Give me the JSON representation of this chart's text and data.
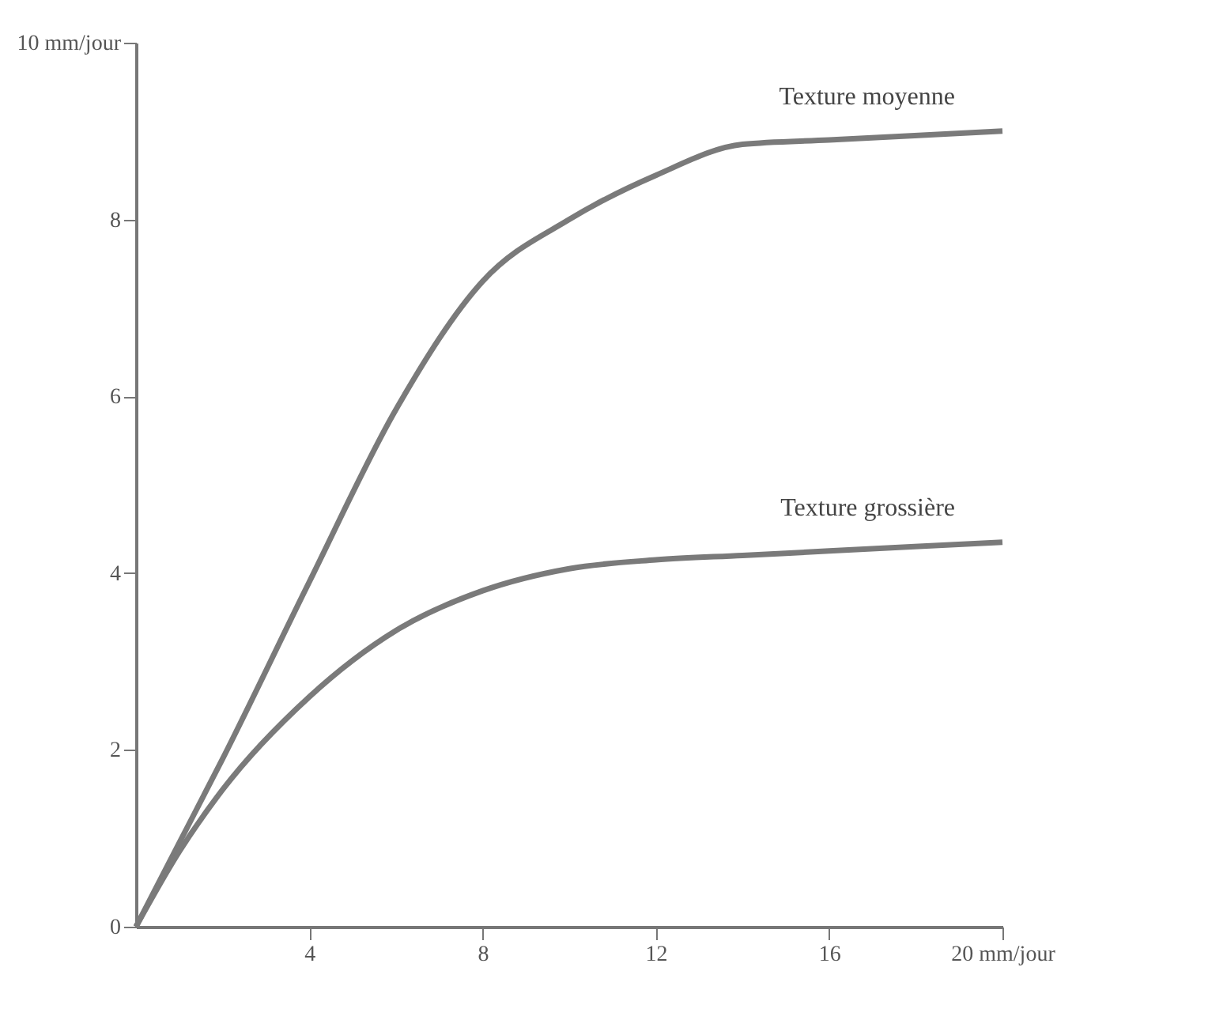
{
  "chart_data": {
    "type": "line",
    "x": [
      0,
      1,
      2,
      4,
      6,
      8,
      10,
      12,
      14,
      16,
      20
    ],
    "series": [
      {
        "name": "Texture moyenne",
        "color": "#7a7a7a",
        "values": [
          0,
          0.95,
          1.9,
          3.9,
          5.85,
          7.3,
          8.0,
          8.5,
          8.85,
          8.9,
          9.0
        ]
      },
      {
        "name": "Texture grossière",
        "color": "#7a7a7a",
        "values": [
          0,
          0.85,
          1.55,
          2.6,
          3.35,
          3.8,
          4.05,
          4.15,
          4.2,
          4.25,
          4.35
        ]
      }
    ],
    "xlim": [
      0,
      20
    ],
    "xticks": [
      4,
      8,
      12,
      16,
      {
        "value": 20,
        "label": "20 mm/jour"
      }
    ],
    "ylim": [
      0,
      10
    ],
    "yticks": [
      0,
      2,
      4,
      6,
      8,
      {
        "value": 10,
        "label": "10 mm/jour"
      }
    ],
    "grid": false,
    "legend": false,
    "marker": "none",
    "line_style": "solid"
  }
}
